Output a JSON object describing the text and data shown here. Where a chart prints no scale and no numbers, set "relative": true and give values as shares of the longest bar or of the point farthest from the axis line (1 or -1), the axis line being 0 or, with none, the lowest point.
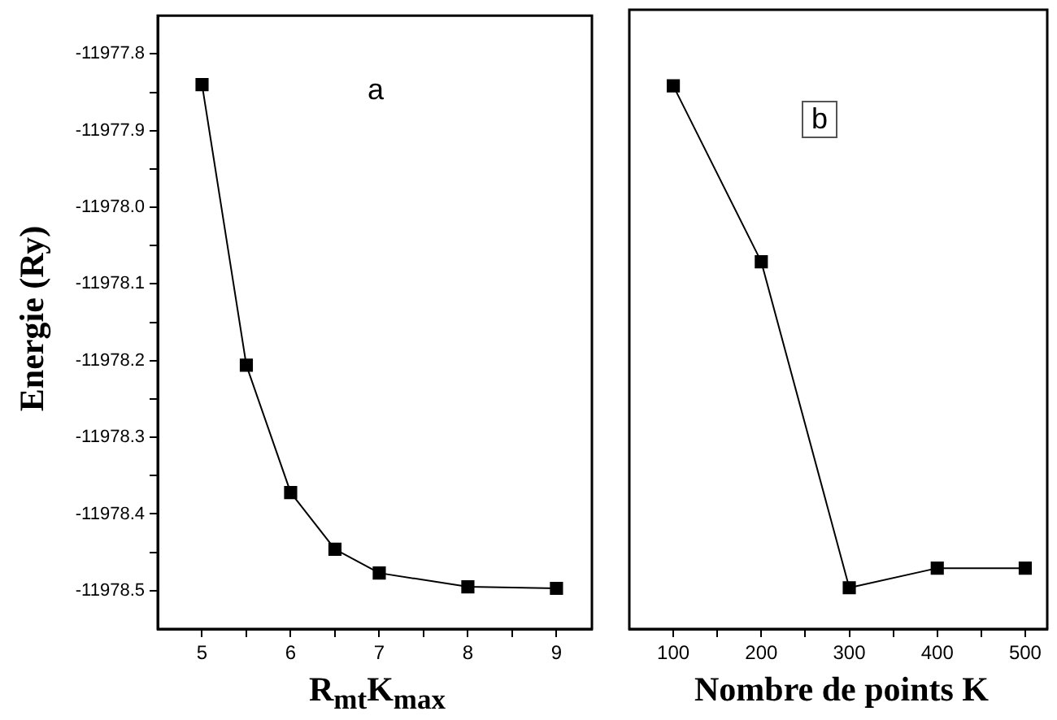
{
  "chart_data": [
    {
      "type": "line",
      "ylabel": "Energie (Ry)",
      "xlabel": "R$_{mt}$K$_{max}$",
      "annotations": [
        "a"
      ],
      "x": [
        5,
        5.5,
        6,
        6.5,
        7,
        8,
        9
      ],
      "series": [
        {
          "color": "#000000",
          "values": [
            -11977.84,
            -11978.206,
            -11978.372,
            -11978.446,
            -11978.477,
            -11978.495,
            -11978.497
          ]
        }
      ],
      "xlim": [
        4.5,
        9.4
      ],
      "xticks": [
        5,
        {
          "value": 5.5,
          "label": null
        },
        6,
        {
          "value": 6.5,
          "label": null
        },
        7,
        {
          "value": 7.5,
          "label": null
        },
        8,
        {
          "value": 8.5,
          "label": null
        },
        9
      ],
      "ylim": [
        -11978.55,
        -11977.75
      ],
      "yticks": [
        {
          "value": -11977.8,
          "label": "-11977.8"
        },
        {
          "value": -11977.85,
          "label": null
        },
        {
          "value": -11977.9,
          "label": "-11977.9"
        },
        {
          "value": -11977.95,
          "label": null
        },
        {
          "value": -11978.0,
          "label": "-11978.0"
        },
        {
          "value": -11978.05,
          "label": null
        },
        {
          "value": -11978.1,
          "label": "-11978.1"
        },
        {
          "value": -11978.15,
          "label": null
        },
        {
          "value": -11978.2,
          "label": "-11978.2"
        },
        {
          "value": -11978.25,
          "label": null
        },
        {
          "value": -11978.3,
          "label": "-11978.3"
        },
        {
          "value": -11978.35,
          "label": null
        },
        {
          "value": -11978.4,
          "label": "-11978.4"
        },
        {
          "value": -11978.45,
          "label": null
        },
        {
          "value": -11978.5,
          "label": "-11978.5"
        }
      ],
      "marker": "square",
      "grid": false,
      "legend": false
    },
    {
      "type": "line",
      "xlabel": "Nombre de points K",
      "annotations": [
        "b"
      ],
      "relative": true,
      "x": [
        100,
        200,
        300,
        400,
        500
      ],
      "series": [
        {
          "color": "#000000",
          "values": [
            1,
            0.676,
            0.076,
            0.112,
            0.112
          ]
        }
      ],
      "xlim": [
        50,
        525
      ],
      "xticks": [
        100,
        {
          "value": 150,
          "label": null
        },
        200,
        {
          "value": 250,
          "label": null
        },
        300,
        {
          "value": 350,
          "label": null
        },
        400,
        {
          "value": 450,
          "label": null
        },
        500
      ],
      "marker": "square",
      "grid": false,
      "legend": false
    }
  ]
}
